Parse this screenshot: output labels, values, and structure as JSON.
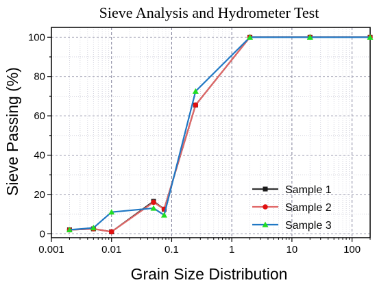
{
  "chart_data": {
    "type": "line",
    "title": "Sieve Analysis and Hydrometer Test",
    "xlabel": "Grain Size Distribution",
    "ylabel": "Sieve Passing (%)",
    "x_scale": "log",
    "xlim": [
      0.001,
      200
    ],
    "ylim": [
      -2,
      105
    ],
    "x_ticks": [
      {
        "value": 0.001,
        "label": "0.001"
      },
      {
        "value": 0.01,
        "label": "0.01"
      },
      {
        "value": 0.1,
        "label": "0.1"
      },
      {
        "value": 1,
        "label": "1"
      },
      {
        "value": 10,
        "label": "10"
      },
      {
        "value": 100,
        "label": "100"
      }
    ],
    "y_ticks": [
      {
        "value": 0,
        "label": "0"
      },
      {
        "value": 20,
        "label": "20"
      },
      {
        "value": 40,
        "label": "40"
      },
      {
        "value": 60,
        "label": "60"
      },
      {
        "value": 80,
        "label": "80"
      },
      {
        "value": 100,
        "label": "100"
      }
    ],
    "grid": true,
    "legend_position": "bottom-right",
    "series": [
      {
        "name": "Sample 1",
        "color": "#333333",
        "marker": "square",
        "x": [
          0.002,
          0.005,
          0.01,
          0.05,
          0.075,
          0.25,
          2,
          20,
          200
        ],
        "y": [
          2,
          2.5,
          1,
          16.5,
          12.5,
          65.5,
          100,
          100,
          100
        ]
      },
      {
        "name": "Sample 2",
        "color": "#e06666",
        "marker": "circle",
        "x": [
          0.002,
          0.005,
          0.01,
          0.05,
          0.075,
          0.25,
          2,
          20,
          200
        ],
        "y": [
          2,
          2.5,
          1,
          16,
          12.5,
          65.5,
          100,
          100,
          100
        ]
      },
      {
        "name": "Sample 3",
        "color": "#1f77c4",
        "marker": "triangle",
        "x": [
          0.002,
          0.005,
          0.01,
          0.05,
          0.075,
          0.25,
          2,
          20,
          200
        ],
        "y": [
          2,
          3,
          11,
          13,
          9.5,
          72.5,
          100,
          100,
          100
        ]
      }
    ]
  }
}
